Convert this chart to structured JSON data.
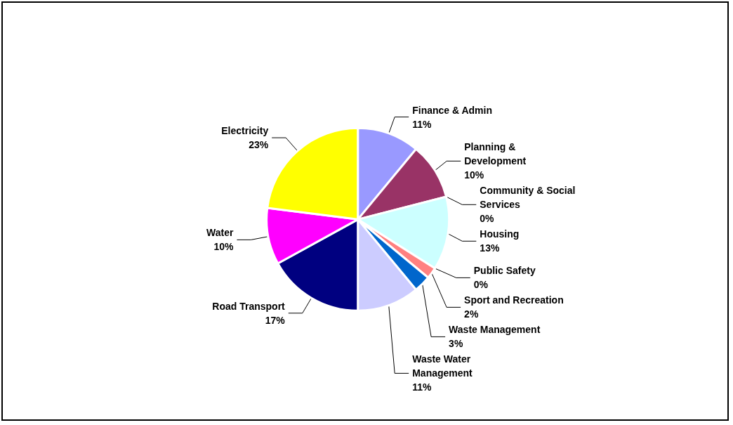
{
  "chart_data": {
    "type": "pie",
    "categories": [
      "Finance & Admin",
      "Planning & Development",
      "Community & Social Services",
      "Housing",
      "Public Safety",
      "Sport and Recreation",
      "Waste Management",
      "Waste Water Management",
      "Road Transport",
      "Water",
      "Electricity"
    ],
    "values": [
      11,
      10,
      0,
      13,
      0,
      2,
      3,
      11,
      17,
      10,
      23
    ],
    "value_labels": [
      "11%",
      "10%",
      "0%",
      "13%",
      "0%",
      "2%",
      "3%",
      "11%",
      "17%",
      "10%",
      "23%"
    ],
    "colors": [
      "#9999ff",
      "#993366",
      "#ffffcc",
      "#ccffff",
      "#000000",
      "#ff8080",
      "#0066cc",
      "#ccccff",
      "#000080",
      "#ff00ff",
      "#ffff00"
    ]
  }
}
